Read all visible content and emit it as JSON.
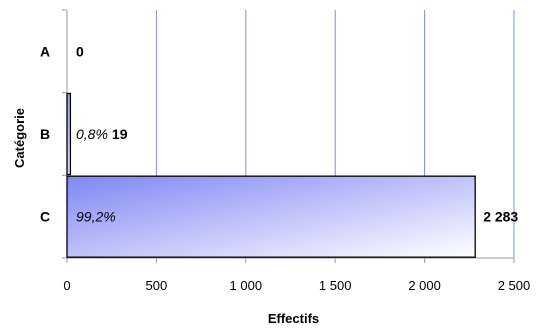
{
  "chart_data": {
    "type": "bar",
    "orientation": "horizontal",
    "categories": [
      "A",
      "B",
      "C"
    ],
    "values": [
      0,
      19,
      2283
    ],
    "value_labels": [
      "0",
      "19",
      "2 283"
    ],
    "percent_labels": [
      "",
      "0,8%",
      "99,2%"
    ],
    "xlabel": "Effectifs",
    "ylabel": "Catégorie",
    "xlim": [
      0,
      2500
    ],
    "xticks": [
      0,
      500,
      1000,
      1500,
      2000,
      2500
    ],
    "xtick_labels": [
      "0",
      "500",
      "1 000",
      "1 500",
      "2 000",
      "2 500"
    ],
    "grid": true,
    "colors": {
      "gridline": "#7f8fd9",
      "bar_gradient_start": "#7f86f4",
      "bar_gradient_end": "#ffffff",
      "bar_stroke": "#000000"
    }
  }
}
